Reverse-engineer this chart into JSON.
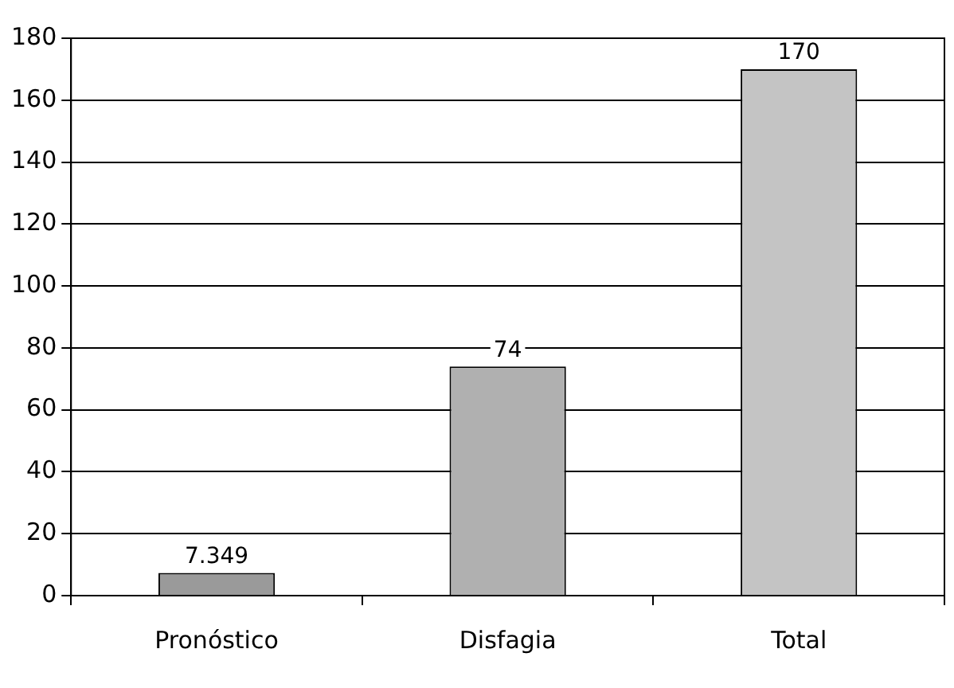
{
  "chart_data": {
    "type": "bar",
    "categories": [
      "Pronóstico",
      "Disfagia",
      "Total"
    ],
    "values": [
      7.349,
      74,
      170
    ],
    "colors": [
      "#9a9a9a",
      "#b0b0b0",
      "#c4c4c4"
    ],
    "ylim": [
      0,
      180
    ],
    "yticks": [
      0,
      20,
      40,
      60,
      80,
      100,
      120,
      140,
      160,
      180
    ],
    "grid": "y",
    "data_labels": true,
    "legend": false
  }
}
